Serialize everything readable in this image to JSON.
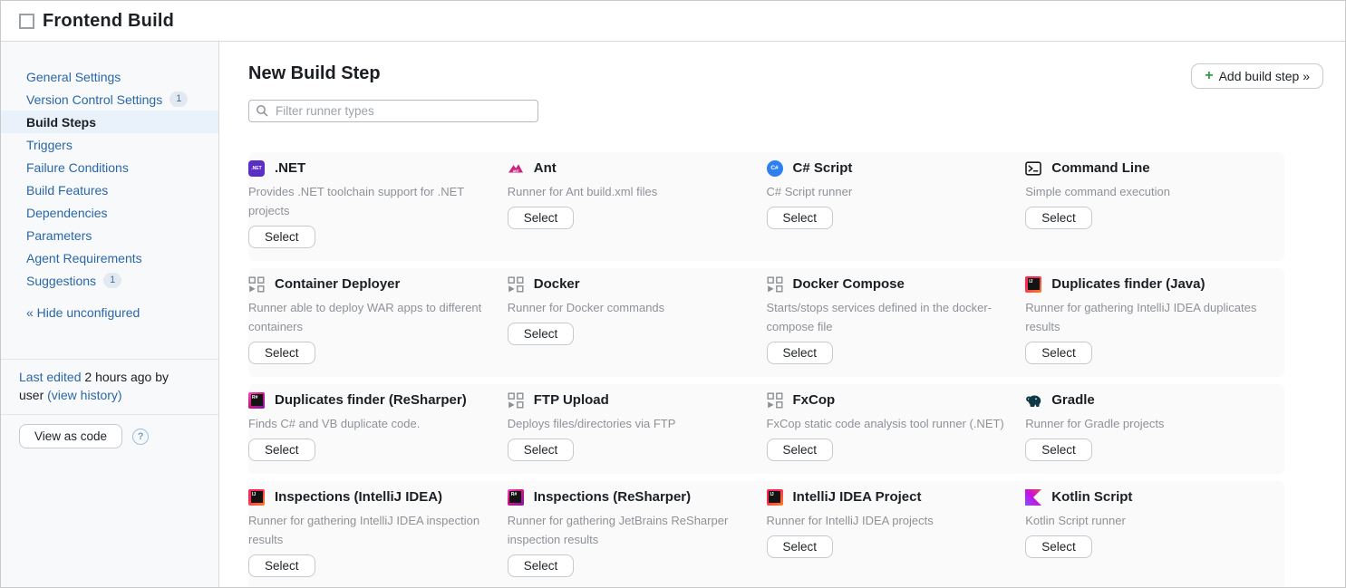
{
  "header": {
    "title": "Frontend Build"
  },
  "sidebar": {
    "items": [
      {
        "label": "General Settings",
        "badge": null,
        "active": false
      },
      {
        "label": "Version Control Settings",
        "badge": "1",
        "active": false
      },
      {
        "label": "Build Steps",
        "badge": null,
        "active": true
      },
      {
        "label": "Triggers",
        "badge": null,
        "active": false
      },
      {
        "label": "Failure Conditions",
        "badge": null,
        "active": false
      },
      {
        "label": "Build Features",
        "badge": null,
        "active": false
      },
      {
        "label": "Dependencies",
        "badge": null,
        "active": false
      },
      {
        "label": "Parameters",
        "badge": null,
        "active": false
      },
      {
        "label": "Agent Requirements",
        "badge": null,
        "active": false
      },
      {
        "label": "Suggestions",
        "badge": "1",
        "active": false
      }
    ],
    "hide_unconfigured": "« Hide unconfigured",
    "last_edited": {
      "lead_link": "Last edited",
      "middle": "2 hours ago by user",
      "history_link": "(view history)"
    },
    "view_as_code": "View as code",
    "help": "?"
  },
  "main": {
    "title": "New Build Step",
    "filter_placeholder": "Filter runner types",
    "add_button": {
      "plus": "+",
      "label": "Add build step »"
    },
    "select_label": "Select",
    "runners": [
      {
        "name": ".NET",
        "icon": "dotnet-icon",
        "description": "Provides .NET toolchain support for .NET projects"
      },
      {
        "name": "Ant",
        "icon": "ant-icon",
        "description": "Runner for Ant build.xml files"
      },
      {
        "name": "C# Script",
        "icon": "csharp-icon",
        "description": "C# Script runner"
      },
      {
        "name": "Command Line",
        "icon": "terminal-icon",
        "description": "Simple command execution"
      },
      {
        "name": "Container Deployer",
        "icon": "generic-runner-icon",
        "description": "Runner able to deploy WAR apps to different containers"
      },
      {
        "name": "Docker",
        "icon": "generic-runner-icon",
        "description": "Runner for Docker commands"
      },
      {
        "name": "Docker Compose",
        "icon": "generic-runner-icon",
        "description": "Starts/stops services defined in the docker-compose file"
      },
      {
        "name": "Duplicates finder (Java)",
        "icon": "intellij-idea-icon",
        "description": "Runner for gathering IntelliJ IDEA duplicates results"
      },
      {
        "name": "Duplicates finder (ReSharper)",
        "icon": "resharper-icon",
        "description": "Finds C# and VB duplicate code."
      },
      {
        "name": "FTP Upload",
        "icon": "generic-runner-icon",
        "description": "Deploys files/directories via FTP"
      },
      {
        "name": "FxCop",
        "icon": "generic-runner-icon",
        "description": "FxCop static code analysis tool runner (.NET)"
      },
      {
        "name": "Gradle",
        "icon": "gradle-icon",
        "description": "Runner for Gradle projects"
      },
      {
        "name": "Inspections (IntelliJ IDEA)",
        "icon": "intellij-idea-icon",
        "description": "Runner for gathering IntelliJ IDEA inspection results"
      },
      {
        "name": "Inspections (ReSharper)",
        "icon": "resharper-icon",
        "description": "Runner for gathering JetBrains ReSharper inspection results"
      },
      {
        "name": "IntelliJ IDEA Project",
        "icon": "intellij-idea-icon",
        "description": "Runner for IntelliJ IDEA projects"
      },
      {
        "name": "Kotlin Script",
        "icon": "kotlin-icon",
        "description": "Kotlin Script runner"
      }
    ]
  },
  "colors": {
    "link_blue": "#2a67a8",
    "active_item_bg": "#e9f2fb",
    "add_plus_green": "#2ea043",
    "description_gray": "#8e9297",
    "sidebar_bg": "#f8f9fb",
    "dotnet_purple": "#5b2ec5",
    "csharp_blue": "#2e80f1",
    "ant_magenta": "#c6287f",
    "gradle_teal": "#0e3a47"
  }
}
